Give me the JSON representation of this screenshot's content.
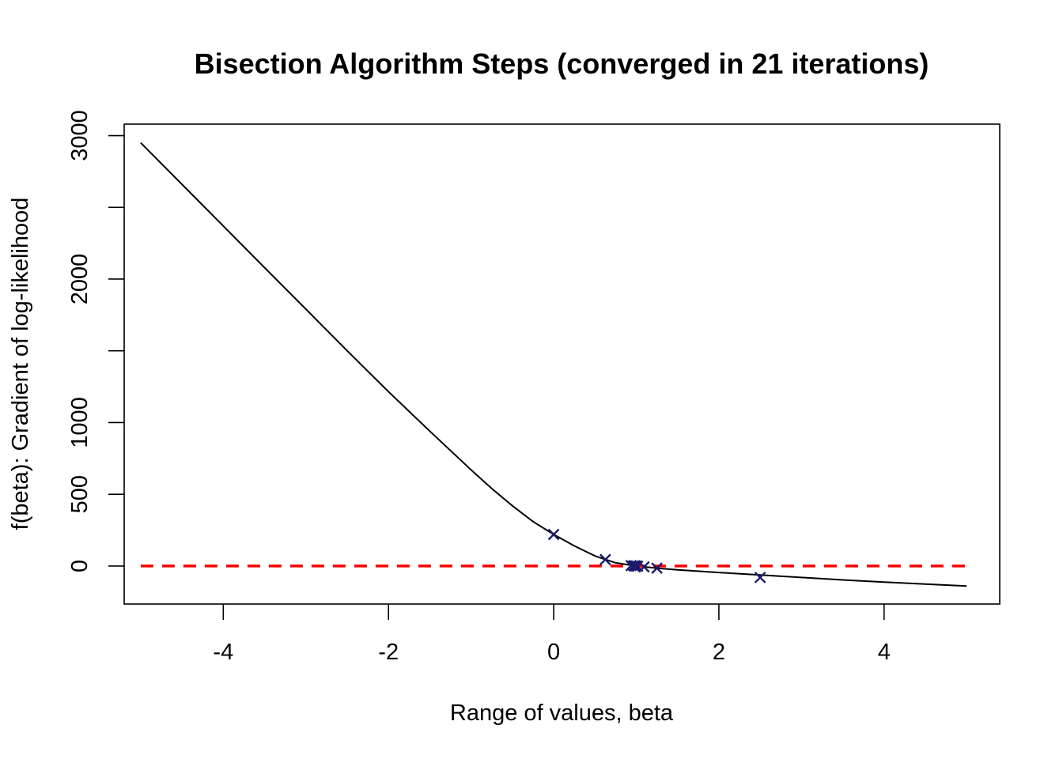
{
  "chart_data": {
    "type": "line",
    "title": "Bisection Algorithm Steps (converged in 21 iterations)",
    "xlabel": "Range of values, beta",
    "ylabel": "f(beta): Gradient of log-likelihood",
    "xlim": [
      -5.2,
      5.4
    ],
    "ylim": [
      -265,
      3080
    ],
    "x_ticks": [
      -4,
      -2,
      0,
      2,
      4
    ],
    "x_tick_labels": [
      "-4",
      "-2",
      "0",
      "2",
      "4"
    ],
    "y_ticks": [
      0,
      500,
      1000,
      1500,
      2000,
      2500,
      3000
    ],
    "y_tick_labels": [
      "0",
      "500",
      "1000",
      "",
      "2000",
      "",
      "3000"
    ],
    "grid": false,
    "colors": {
      "curve": "#000000",
      "zero_line": "#ff0000",
      "markers": "#1a1a6e"
    },
    "series": [
      {
        "kind": "curve",
        "x": [
          -5,
          -4.5,
          -4,
          -3.5,
          -3,
          -2.5,
          -2,
          -1.5,
          -1,
          -0.75,
          -0.5,
          -0.25,
          0,
          0.25,
          0.5,
          0.75,
          1,
          1.25,
          1.5,
          2,
          2.5,
          3,
          3.5,
          4,
          4.5,
          5
        ],
        "y": [
          2950,
          2660,
          2370,
          2080,
          1790,
          1500,
          1215,
          940,
          670,
          540,
          420,
          310,
          220,
          140,
          70,
          22,
          0,
          -15,
          -27,
          -45,
          -62,
          -80,
          -97,
          -112,
          -126,
          -140
        ]
      },
      {
        "kind": "zero-line",
        "x": [
          -5,
          5
        ],
        "y": [
          0,
          0
        ]
      },
      {
        "kind": "bisection-steps",
        "marker": "x",
        "x": [
          0,
          0.625,
          0.9375,
          0.96875,
          0.984375,
          1.0,
          1.015625,
          1.09375,
          1.25,
          2.5
        ],
        "y": [
          220,
          45,
          3,
          2,
          1,
          0,
          -1,
          -6,
          -15,
          -80
        ]
      }
    ]
  }
}
